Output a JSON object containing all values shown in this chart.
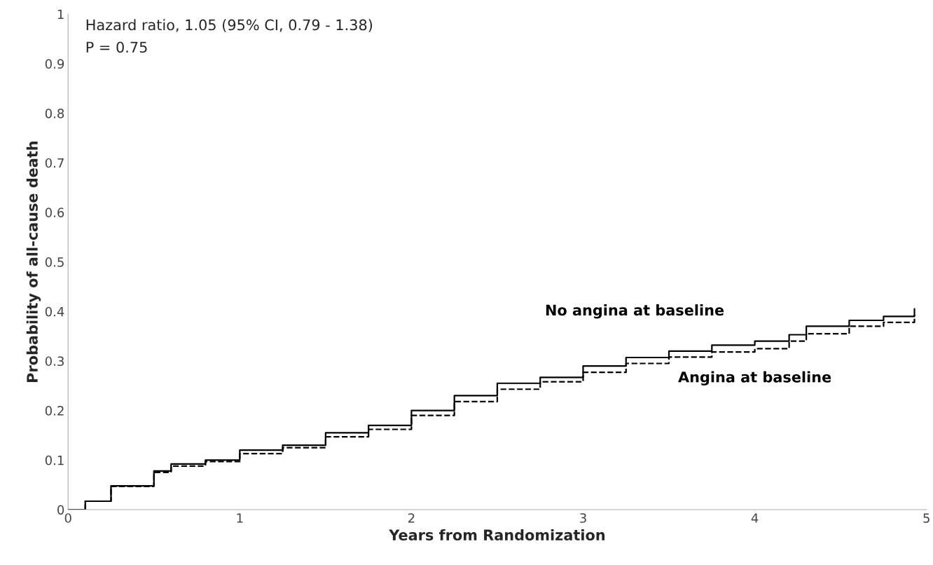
{
  "chart_data": {
    "type": "step",
    "xlabel": "Years from Randomization",
    "ylabel": "Probability of all-cause death",
    "annotations": [
      "Hazard ratio, 1.05 (95% CI, 0.79 - 1.38)",
      "P = 0.75"
    ],
    "x": [
      0,
      0.1,
      0.25,
      0.5,
      0.6,
      0.8,
      1.0,
      1.25,
      1.5,
      1.75,
      2.0,
      2.25,
      2.5,
      2.75,
      3.0,
      3.25,
      3.5,
      3.75,
      4.0,
      4.2,
      4.3,
      4.5,
      4.55,
      4.75,
      4.93
    ],
    "series": [
      {
        "name": "No angina at baseline",
        "color": "#000000",
        "line_style": "solid",
        "values": [
          0,
          0.017,
          0.048,
          0.078,
          0.092,
          0.1,
          0.12,
          0.13,
          0.155,
          0.17,
          0.2,
          0.23,
          0.255,
          0.267,
          0.29,
          0.307,
          0.32,
          0.332,
          0.34,
          0.353,
          0.37,
          0.37,
          0.382,
          0.39,
          0.405
        ]
      },
      {
        "name": "Angina at baseline",
        "color": "#000000",
        "line_style": "dashed",
        "values": [
          0,
          0.017,
          0.047,
          0.075,
          0.088,
          0.097,
          0.113,
          0.125,
          0.147,
          0.162,
          0.19,
          0.218,
          0.243,
          0.258,
          0.277,
          0.295,
          0.308,
          0.318,
          0.325,
          0.34,
          0.355,
          0.355,
          0.37,
          0.378,
          0.393
        ]
      }
    ],
    "xlim": [
      0,
      5
    ],
    "xticks": [
      0,
      1,
      2,
      3,
      4,
      5
    ],
    "ylim": [
      0,
      1
    ],
    "yticks": [
      0,
      0.1,
      0.2,
      0.3,
      0.4,
      0.5,
      0.6,
      0.7,
      0.8,
      0.9,
      1
    ],
    "grid": false,
    "legend": false
  }
}
